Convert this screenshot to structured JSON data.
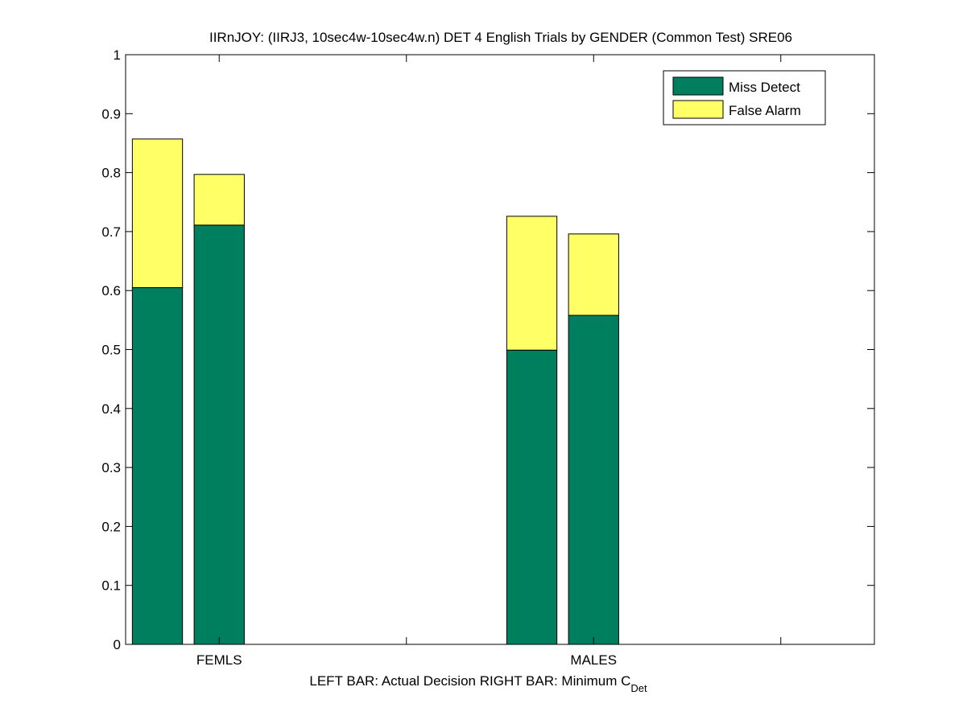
{
  "chart_data": {
    "type": "bar",
    "stacked": true,
    "title": "IIRnJOY: (IIRJ3, 10sec4w-10sec4w.n) DET 4 English Trials by GENDER (Common Test) SRE06",
    "xlabel_left": "LEFT BAR: Actual Decision",
    "xlabel_right": "RIGHT BAR: Minimum C",
    "xlabel_right_sub": "Det",
    "categories": [
      "FEMLS",
      "MALES"
    ],
    "bars_per_category": [
      "Actual Decision",
      "Minimum C_Det"
    ],
    "series": [
      {
        "name": "Miss Detect",
        "color": "#007f5f",
        "values": [
          [
            0.605,
            0.711
          ],
          [
            0.499,
            0.558
          ]
        ]
      },
      {
        "name": "False Alarm",
        "color": "#ffff66",
        "values": [
          [
            0.252,
            0.086
          ],
          [
            0.227,
            0.138
          ]
        ]
      }
    ],
    "totals": [
      [
        0.857,
        0.797
      ],
      [
        0.726,
        0.696
      ]
    ],
    "ylim": [
      0,
      1
    ],
    "yticks": [
      "0",
      "0.1",
      "0.2",
      "0.3",
      "0.4",
      "0.5",
      "0.6",
      "0.7",
      "0.8",
      "0.9",
      "1"
    ],
    "xlim": [
      0,
      4
    ],
    "xticks": [
      "FEMLS",
      "",
      "MALES",
      ""
    ],
    "legend_position": "top-right",
    "grid": false
  }
}
